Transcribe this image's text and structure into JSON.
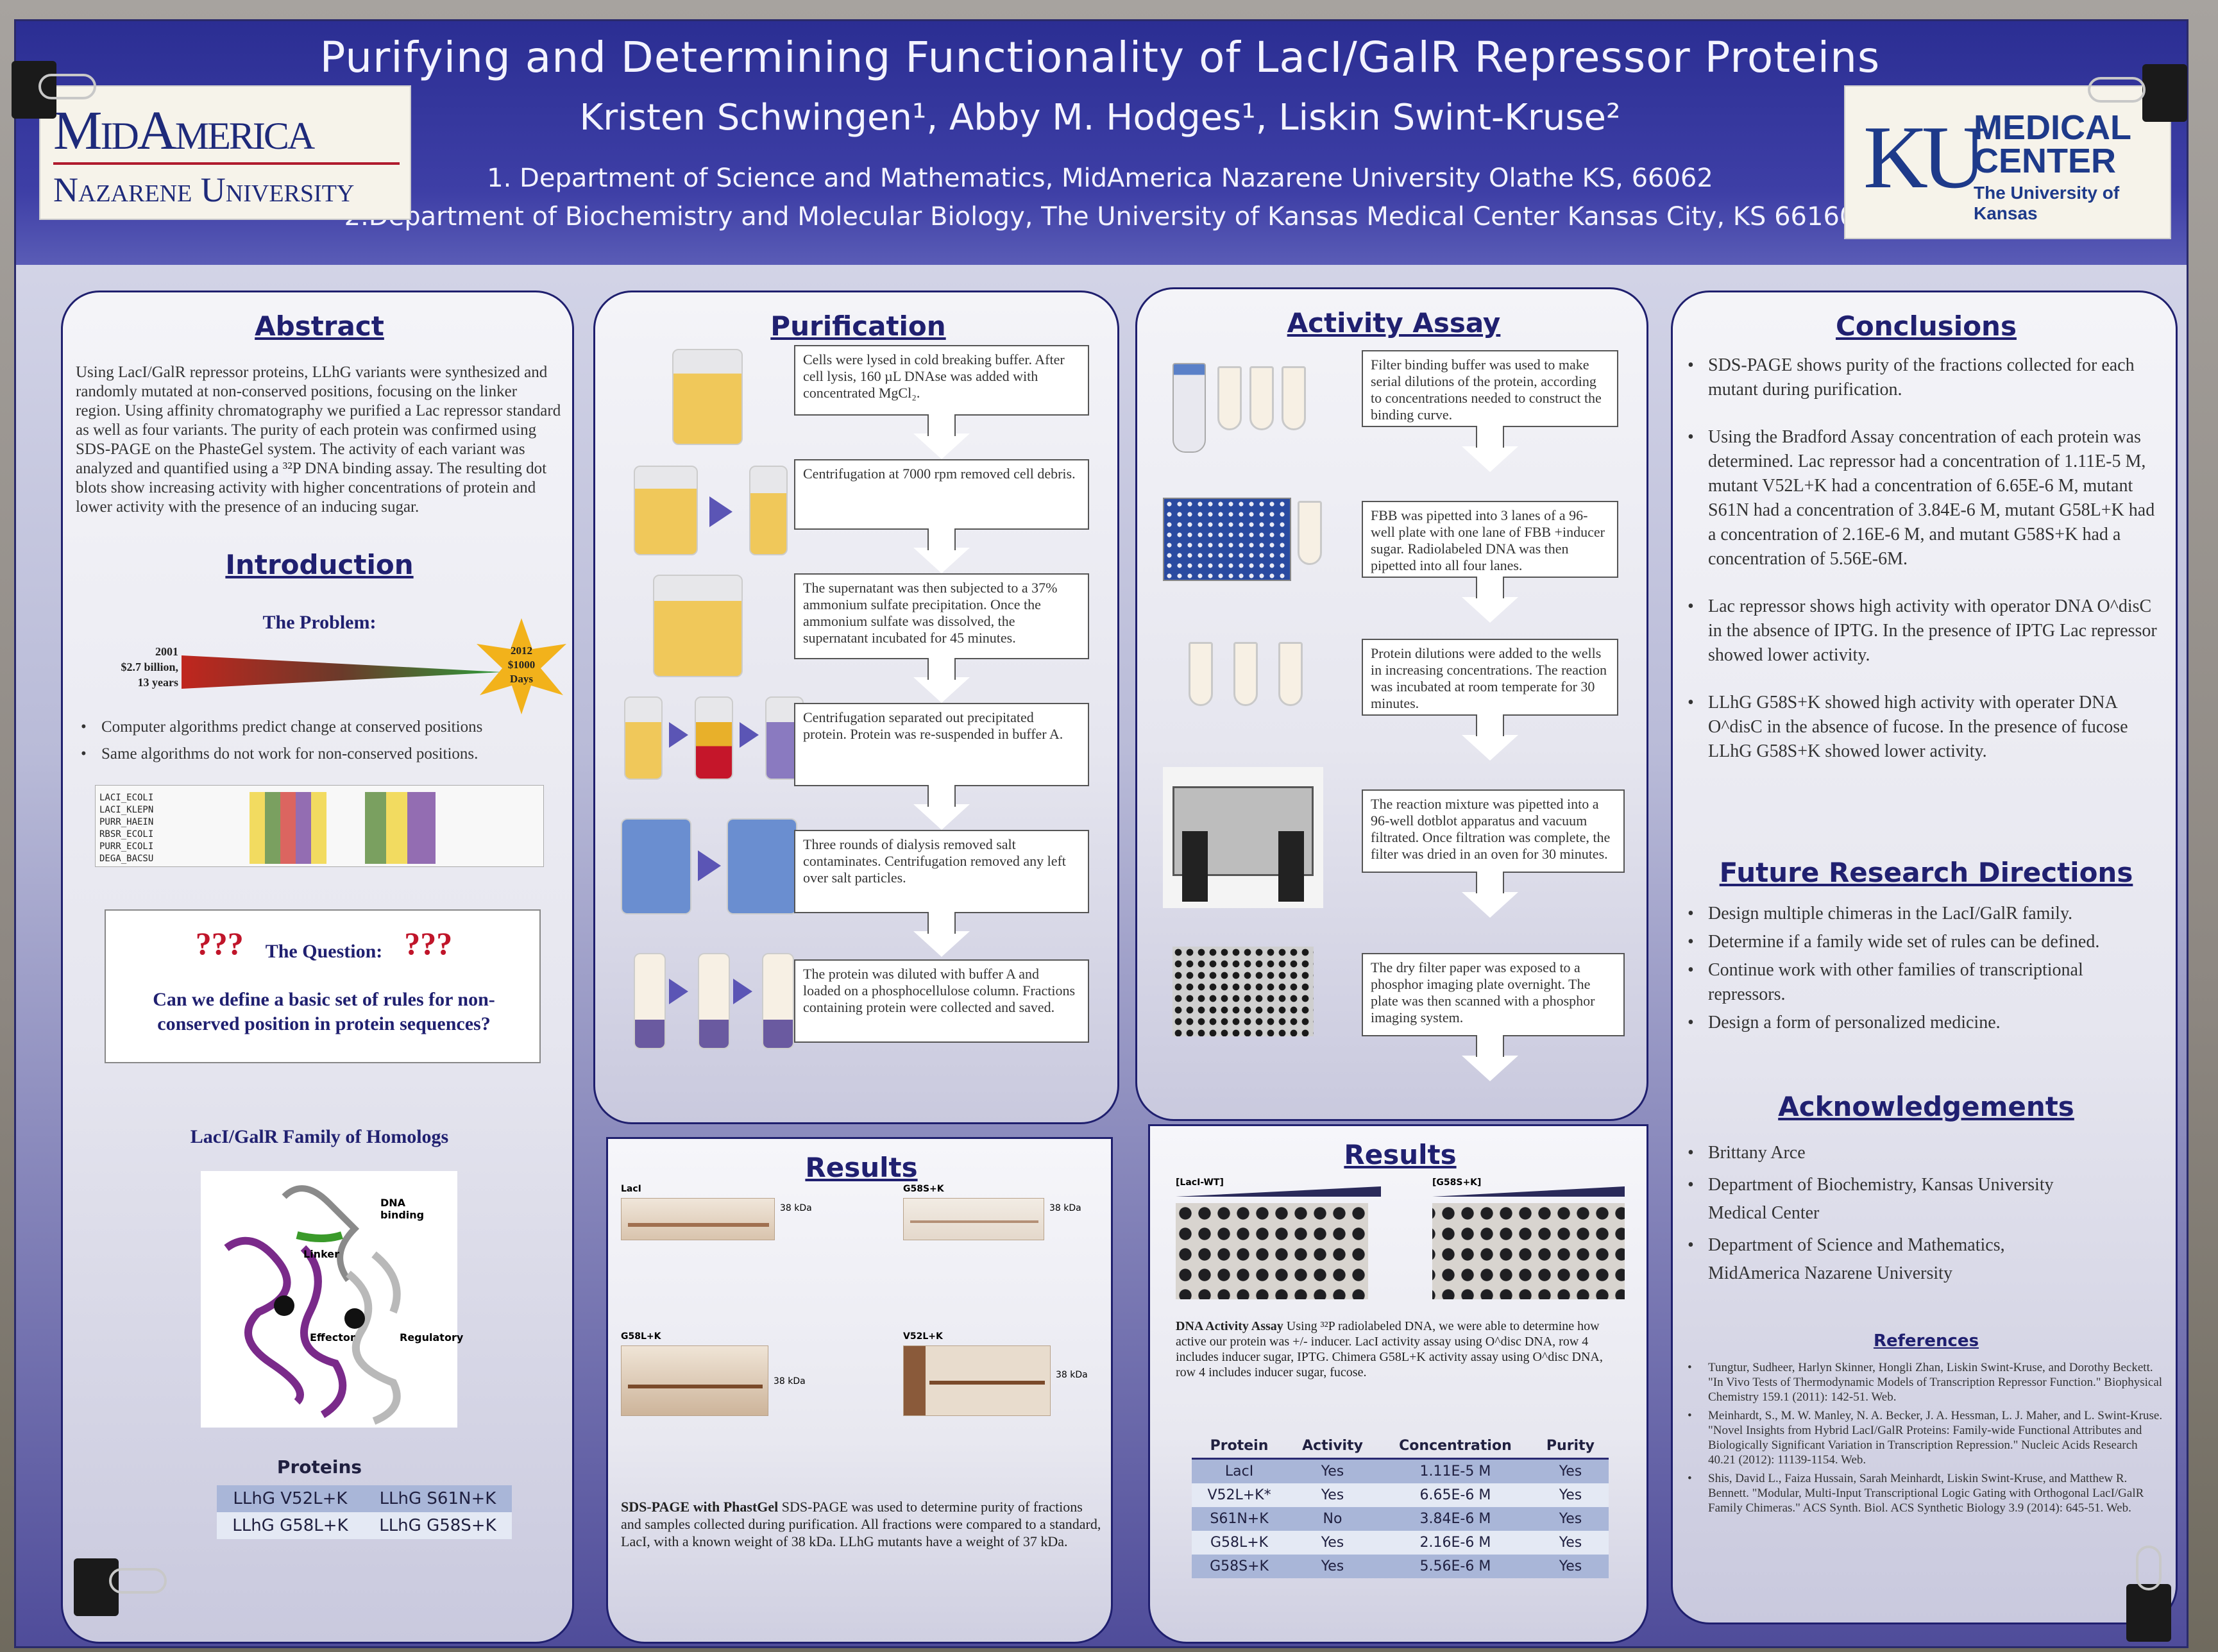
{
  "poster": {
    "title": "Purifying and Determining Functionality of LacI/GalR Repressor Proteins",
    "authors": "Kristen Schwingen¹, Abby M. Hodges¹, Liskin Swint-Kruse²",
    "dept1": "1. Department of Science and Mathematics, MidAmerica Nazarene University Olathe KS, 66062",
    "dept2": "2.Department of Biochemistry and Molecular Biology, The University of Kansas Medical Center Kansas City, KS 66160",
    "logo_left_line1": "MidAmerica",
    "logo_left_line2": "Nazarene University",
    "logo_right_ku": "KU",
    "logo_right_medical": "MEDICAL",
    "logo_right_center": "CENTER",
    "logo_right_sub": "The University of Kansas"
  },
  "abstract": {
    "title": "Abstract",
    "text": "Using LacI/GalR repressor proteins, LLhG variants were synthesized and randomly mutated at non-conserved positions, focusing on the linker region. Using affinity chromatography we purified a Lac repressor standard as well as four variants. The purity of each protein was confirmed using SDS-PAGE on the PhasteGel system. The activity of each variant was analyzed and quantified using a ³²P DNA binding assay. The resulting dot blots show increasing activity with higher concentrations of protein and lower activity with the presence of an inducing sugar."
  },
  "introduction": {
    "title": "Introduction",
    "problem_head": "The Problem:",
    "left_label_1": "2001",
    "left_label_2": "$2.7 billion,",
    "left_label_3": "13 years",
    "star_1": "2012",
    "star_2": "$1000",
    "star_3": "Days",
    "bullets": [
      "Computer algorithms predict change at conserved positions",
      "Same algorithms do not work for non-conserved positions."
    ],
    "seq_names": [
      "LACI_ECOLI",
      "LACI_KLEPN",
      "PURR_HAEIN",
      "RBSR_ECOLI",
      "PURR_ECOLI",
      "DEGA_BACSU"
    ],
    "question_marks": "???",
    "question_head": "The Question:",
    "question": "Can we define a basic set of rules for non-conserved position in protein sequences?",
    "family_head": "LacI/GalR Family of Homologs",
    "label_dna": "DNA binding",
    "label_linker": "Linker",
    "label_effector": "Effector",
    "label_regulatory": "Regulatory",
    "proteins_head": "Proteins",
    "proteins": [
      "LLhG V52L+K",
      "LLhG S61N+K",
      "LLhG G58L+K",
      "LLhG G58S+K"
    ]
  },
  "purification": {
    "title": "Purification",
    "steps": [
      "Cells were lysed in cold breaking buffer. After cell lysis, 160 µL DNAse was added with concentrated MgCl₂.",
      "Centrifugation at 7000 rpm removed cell debris.",
      "The supernatant was then subjected to a 37% ammonium sulfate precipitation. Once the ammonium sulfate was dissolved, the supernatant incubated for 45 minutes.",
      "Centrifugation separated out precipitated protein. Protein was re-suspended in buffer A.",
      "Three rounds of dialysis removed salt contaminates. Centrifugation removed any left over salt particles.",
      "The protein was diluted with buffer A and loaded on a phosphocellulose column. Fractions containing protein were collected and saved."
    ]
  },
  "activity": {
    "title": "Activity Assay",
    "steps": [
      "Filter binding buffer was used to make serial dilutions of the protein, according to concentrations needed to construct the binding curve.",
      "FBB was pipetted into 3 lanes of a 96-well plate with one lane of FBB +inducer sugar. Radiolabeled DNA was then pipetted into all four lanes.",
      "Protein dilutions were added to the wells in increasing concentrations. The reaction was incubated at room temperate for 30 minutes.",
      "The reaction mixture was pipetted into a 96-well dotblot apparatus and vacuum filtrated. Once filtration was complete, the filter was dried in an oven for 30 minutes.",
      "The dry filter paper was exposed to a phosphor imaging plate overnight. The plate was then scanned with a phosphor imaging system."
    ]
  },
  "results_gels": {
    "title": "Results",
    "gel1": "LacI",
    "gel2": "G58S+K",
    "gel3": "G58L+K",
    "gel4": "V52L+K",
    "kda": "38 kDa",
    "caption_bold": "SDS-PAGE with PhastGel",
    "caption": " SDS-PAGE was used to determine purity of fractions and samples collected during purification. All fractions were compared to a standard, LacI, with a known weight of 38 kDa. LLhG mutants have a weight of 37 kDa."
  },
  "results_activity": {
    "title": "Results",
    "blot1": "[LacI-WT]",
    "blot2": "[G58S+K]",
    "caption_bold": "DNA Activity Assay",
    "caption": " Using ³²P radiolabeled DNA, we were able to determine how active our protein was +/- inducer. LacI activity assay using O^disc DNA, row 4 includes inducer sugar, IPTG. Chimera G58L+K activity assay using O^disc DNA, row 4 includes inducer sugar, fucose.",
    "table_headers": [
      "Protein",
      "Activity",
      "Concentration",
      "Purity"
    ],
    "table_rows": [
      [
        "LacI",
        "Yes",
        "1.11E-5 M",
        "Yes"
      ],
      [
        "V52L+K*",
        "Yes",
        "6.65E-6 M",
        "Yes"
      ],
      [
        "S61N+K",
        "No",
        "3.84E-6 M",
        "Yes"
      ],
      [
        "G58L+K",
        "Yes",
        "2.16E-6 M",
        "Yes"
      ],
      [
        "G58S+K",
        "Yes",
        "5.56E-6 M",
        "Yes"
      ]
    ]
  },
  "conclusions": {
    "title": "Conclusions",
    "bullets": [
      "SDS-PAGE shows purity of the fractions collected for each mutant during purification.",
      "Using the Bradford Assay concentration of each protein was determined. Lac repressor had a concentration of 1.11E-5 M, mutant V52L+K had a concentration of 6.65E-6 M, mutant S61N had a concentration of 3.84E-6 M, mutant G58L+K had a concentration of 2.16E-6 M, and mutant G58S+K had a concentration of 5.56E-6M.",
      "Lac repressor shows high activity with operator DNA O^disC in the absence of IPTG. In the presence of IPTG Lac repressor showed lower activity.",
      "LLhG G58S+K showed high activity with operater DNA O^disC in the absence of fucose. In the presence of fucose LLhG G58S+K showed lower activity."
    ]
  },
  "future": {
    "title": "Future Research Directions",
    "bullets": [
      "Design multiple chimeras in the LacI/GalR family.",
      "Determine if a family wide set of rules can be defined.",
      "Continue work with other families of transcriptional repressors.",
      "Design a form of personalized medicine."
    ]
  },
  "acknowledgements": {
    "title": "Acknowledgements",
    "bullets": [
      "Brittany Arce",
      "Department of Biochemistry, Kansas University Medical Center",
      "Department of Science and Mathematics, MidAmerica Nazarene University"
    ]
  },
  "references": {
    "title": "References",
    "items": [
      "Tungtur, Sudheer, Harlyn Skinner, Hongli Zhan, Liskin Swint-Kruse, and Dorothy Beckett. \"In Vivo Tests of Thermodynamic Models of Transcription Repressor Function.\" Biophysical Chemistry 159.1 (2011): 142-51. Web.",
      "Meinhardt, S., M. W. Manley, N. A. Becker, J. A. Hessman, L. J. Maher, and L. Swint-Kruse. \"Novel Insights from Hybrid LacI/GalR Proteins: Family-wide Functional Attributes and Biologically Significant Variation in Transcription Repression.\" Nucleic Acids Research 40.21 (2012): 11139-1154. Web.",
      "Shis, David L., Faiza Hussain, Sarah Meinhardt, Liskin Swint-Kruse, and Matthew R. Bennett. \"Modular, Multi-Input Transcriptional Logic Gating with Orthogonal LacI/GalR Family Chimeras.\" ACS Synth. Biol. ACS Synthetic Biology 3.9 (2014): 645-51. Web."
    ]
  }
}
